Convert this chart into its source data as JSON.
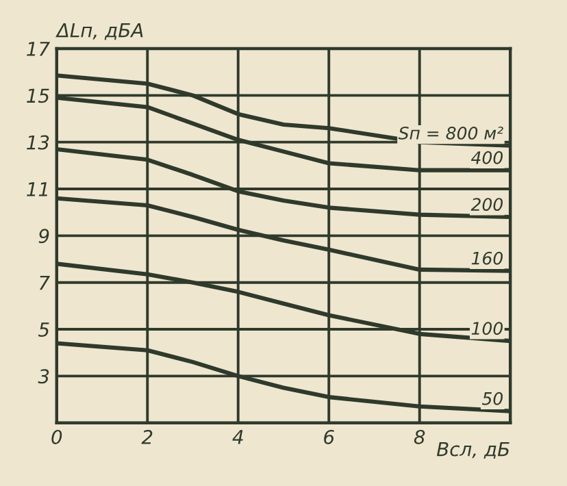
{
  "chart_data": {
    "type": "line",
    "xlabel": "Всл, дБ",
    "ylabel": "ΔLп, дБА",
    "x": [
      0,
      2,
      3,
      4,
      5,
      6,
      8,
      10
    ],
    "series": [
      {
        "name": "Sп = 800 м²",
        "color": "#2f3a2c",
        "values": [
          15.85,
          15.5,
          15.0,
          14.2,
          13.75,
          13.6,
          13.0,
          12.85
        ]
      },
      {
        "name": "400",
        "color": "#2f3a2c",
        "values": [
          14.9,
          14.5,
          13.8,
          13.1,
          12.6,
          12.1,
          11.8,
          11.8
        ]
      },
      {
        "name": "200",
        "color": "#2f3a2c",
        "values": [
          12.7,
          12.25,
          11.6,
          10.9,
          10.5,
          10.2,
          9.9,
          9.8
        ]
      },
      {
        "name": "160",
        "color": "#2f3a2c",
        "values": [
          10.6,
          10.3,
          9.8,
          9.25,
          8.8,
          8.4,
          7.55,
          7.5
        ]
      },
      {
        "name": "100",
        "color": "#2f3a2c",
        "values": [
          7.8,
          7.35,
          7.0,
          6.6,
          6.1,
          5.6,
          4.8,
          4.5
        ]
      },
      {
        "name": "50",
        "color": "#2f3a2c",
        "values": [
          4.4,
          4.1,
          3.6,
          3.0,
          2.5,
          2.1,
          1.7,
          1.5
        ]
      }
    ],
    "xlim": [
      0,
      10
    ],
    "ylim": [
      1,
      17
    ],
    "xticks": [
      0,
      2,
      4,
      6,
      8
    ],
    "yticks": [
      3,
      5,
      7,
      9,
      11,
      13,
      15,
      17
    ],
    "grid": true,
    "legend": false,
    "line_style": "solid",
    "marker": "none"
  }
}
